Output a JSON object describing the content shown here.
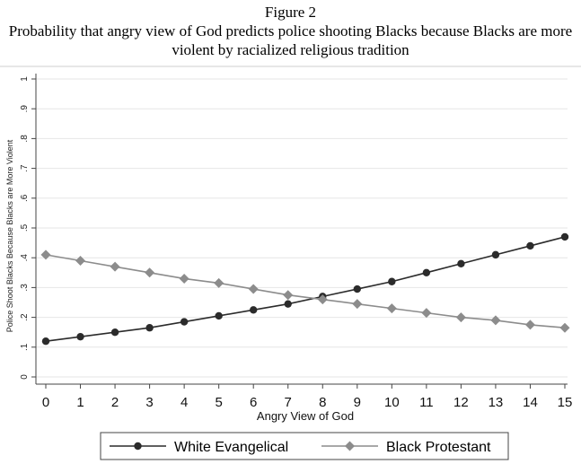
{
  "figure": {
    "label": "Figure 2",
    "title_line1": "Probability that angry view of God predicts police shooting Blacks because Blacks are more",
    "title_line2": "violent by racialized religious tradition"
  },
  "chart_data": {
    "type": "line",
    "xlabel": "Angry View of God",
    "ylabel": "Police Shoot Blacks Because Blacks are More Violent",
    "x": [
      0,
      1,
      2,
      3,
      4,
      5,
      6,
      7,
      8,
      9,
      10,
      11,
      12,
      13,
      14,
      15
    ],
    "xlim": [
      0,
      15
    ],
    "ylim": [
      0,
      1
    ],
    "yticks": [
      0,
      0.1,
      0.2,
      0.3,
      0.4,
      0.5,
      0.6,
      0.7,
      0.8,
      0.9,
      1
    ],
    "ytick_labels": [
      "0",
      ".1",
      ".2",
      ".3",
      ".4",
      ".5",
      ".6",
      ".7",
      ".8",
      ".9",
      "1"
    ],
    "grid": true,
    "legend_position": "bottom",
    "series": [
      {
        "name": "White Evangelical",
        "marker": "circle",
        "color": "#2b2b2b",
        "values": [
          0.12,
          0.135,
          0.15,
          0.165,
          0.185,
          0.205,
          0.225,
          0.245,
          0.27,
          0.295,
          0.32,
          0.35,
          0.38,
          0.41,
          0.44,
          0.47
        ]
      },
      {
        "name": "Black Protestant",
        "marker": "diamond",
        "color": "#8c8c8c",
        "values": [
          0.41,
          0.39,
          0.37,
          0.35,
          0.33,
          0.315,
          0.295,
          0.275,
          0.26,
          0.245,
          0.23,
          0.215,
          0.2,
          0.19,
          0.175,
          0.165
        ]
      }
    ]
  }
}
